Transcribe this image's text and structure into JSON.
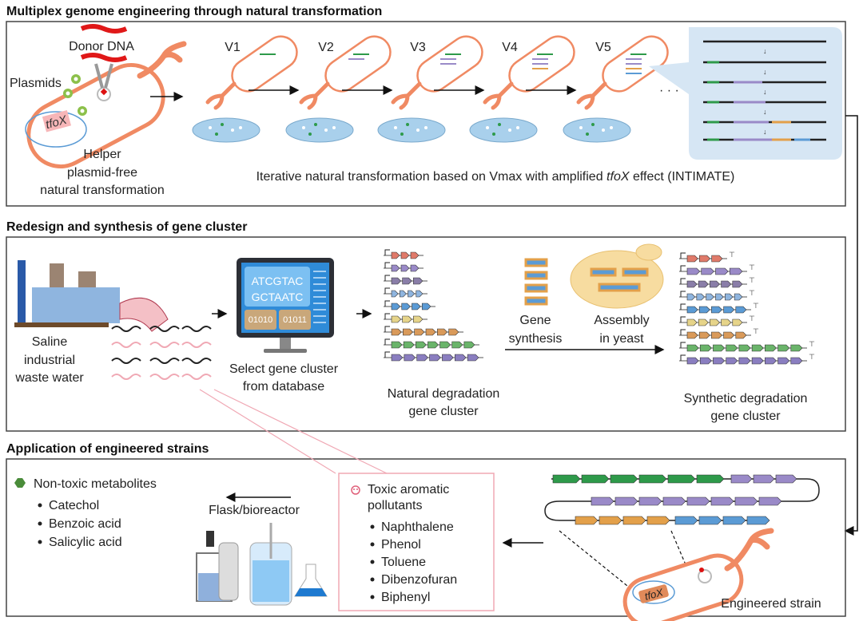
{
  "panel1": {
    "title": "Multiplex genome engineering through natural transformation",
    "donor_dna": "Donor DNA",
    "plasmids": "Plasmids",
    "gene_label": "tfoX",
    "helper_lines": [
      "Helper",
      "plasmid-free",
      "natural transformation"
    ],
    "versions": [
      "V1",
      "V2",
      "V3",
      "V4",
      "V5"
    ],
    "ellipsis": "· · ·",
    "caption_pre": "Iterative natural transformation based on Vmax with amplified ",
    "caption_italic": "tfoX",
    "caption_post": " effect (INTIMATE)"
  },
  "panel2": {
    "title": "Redesign and synthesis of gene cluster",
    "waste_lines": [
      "Saline",
      "industrial",
      "waste water"
    ],
    "monitor_seq": [
      "ATCGTAC",
      "GCTAATC"
    ],
    "monitor_bits": [
      "01010",
      "01011"
    ],
    "select_lines": [
      "Select gene cluster",
      "from database"
    ],
    "natural_lines": [
      "Natural degradation",
      "gene cluster"
    ],
    "gene_synthesis_lines": [
      "Gene",
      "synthesis"
    ],
    "assembly_lines": [
      "Assembly",
      "in yeast"
    ],
    "synthetic_lines": [
      "Synthetic degradation",
      "gene cluster"
    ]
  },
  "panel3": {
    "title": "Application of engineered strains",
    "nontoxic_heading": "Non-toxic metabolites",
    "nontoxic_items": [
      "Catechol",
      "Benzoic acid",
      "Salicylic acid"
    ],
    "flask_label": "Flask/bioreactor",
    "toxic_heading_lines": [
      "Toxic aromatic",
      "pollutants"
    ],
    "toxic_items": [
      "Naphthalene",
      "Phenol",
      "Toluene",
      "Dibenzofuran",
      "Biphenyl"
    ],
    "strain_label": "Engineered strain",
    "gene_label": "tfoX"
  },
  "colors": {
    "cell": "#f08a63",
    "green": "#2e9a4a",
    "purple": "#9a8ac8",
    "orange": "#e3a04a",
    "blue": "#5b9bd5",
    "pink_line": "#f0a8b4",
    "yeast": "#f7dca0"
  }
}
